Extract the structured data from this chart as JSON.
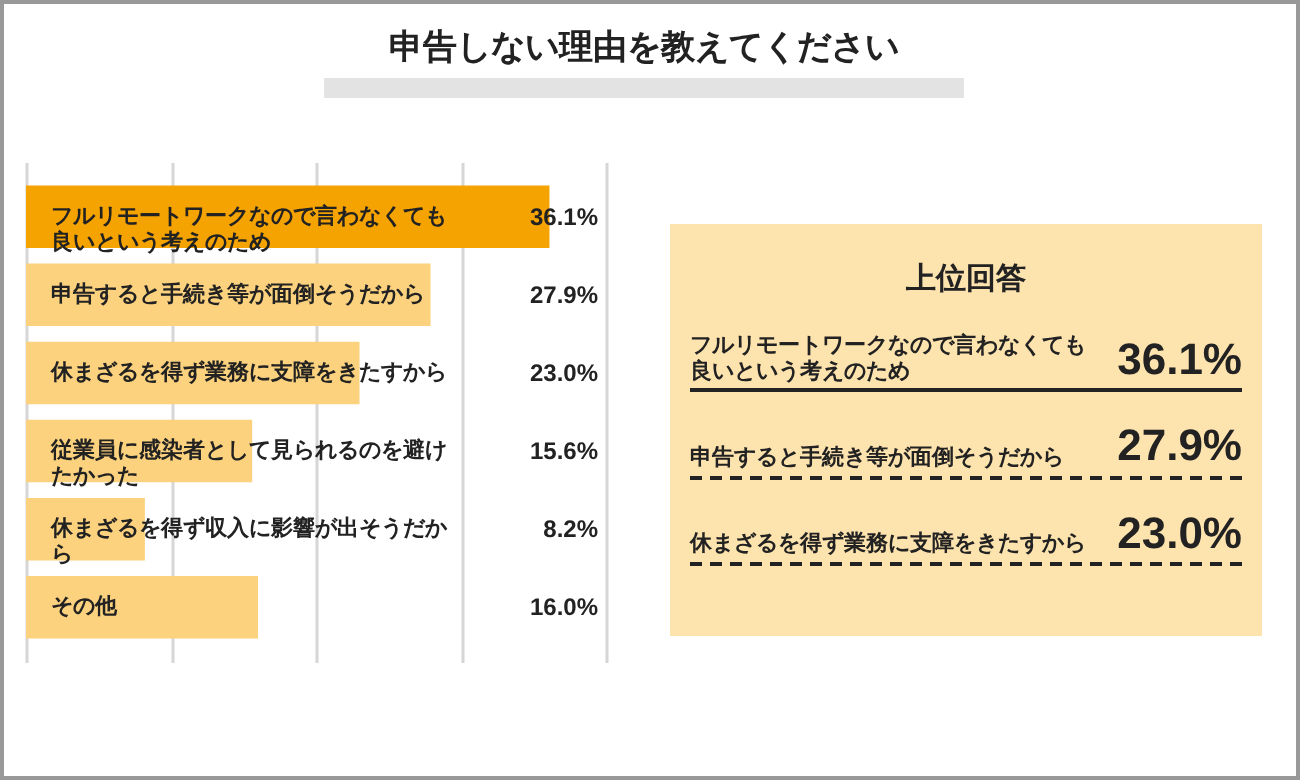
{
  "chart_data": [
    {
      "type": "bar",
      "orientation": "horizontal",
      "title": "申告しない理由を教えてください",
      "categories": [
        "フルリモートワークなので言わなくても良いという考えのため",
        "申告すると手続き等が面倒そうだから",
        "休まざるを得ず業務に支障をきたすから",
        "従業員に感染者として見られるのを避けたかった",
        "休まざるを得ず収入に影響が出そうだから",
        "その他"
      ],
      "values": [
        36.1,
        27.9,
        23.0,
        15.6,
        8.2,
        16.0
      ],
      "colors": [
        "#f5a300",
        "#fcd27e",
        "#fcd27e",
        "#fcd27e",
        "#fcd27e",
        "#fcd27e"
      ],
      "value_labels": [
        "36.1%",
        "27.9%",
        "23.0%",
        "15.6%",
        "8.2%",
        "16.0%"
      ],
      "xlim": [
        0,
        40
      ],
      "xticks": [
        {
          "value": 0,
          "label": null
        },
        {
          "value": 10,
          "label": null
        },
        {
          "value": 20,
          "label": null
        },
        {
          "value": 30,
          "label": null
        },
        {
          "value": 40,
          "label": null
        }
      ],
      "grid": "x",
      "tick_labels": "y"
    },
    {
      "type": "other",
      "title": "上位回答",
      "annotations": [
        "フルリモートワークなので言わなくても良いという考えのため",
        "36.1%",
        "申告すると手続き等が面倒そうだから",
        "27.9%",
        "休まざるを得ず業務に支障をきたすから",
        "23.0%"
      ]
    }
  ]
}
